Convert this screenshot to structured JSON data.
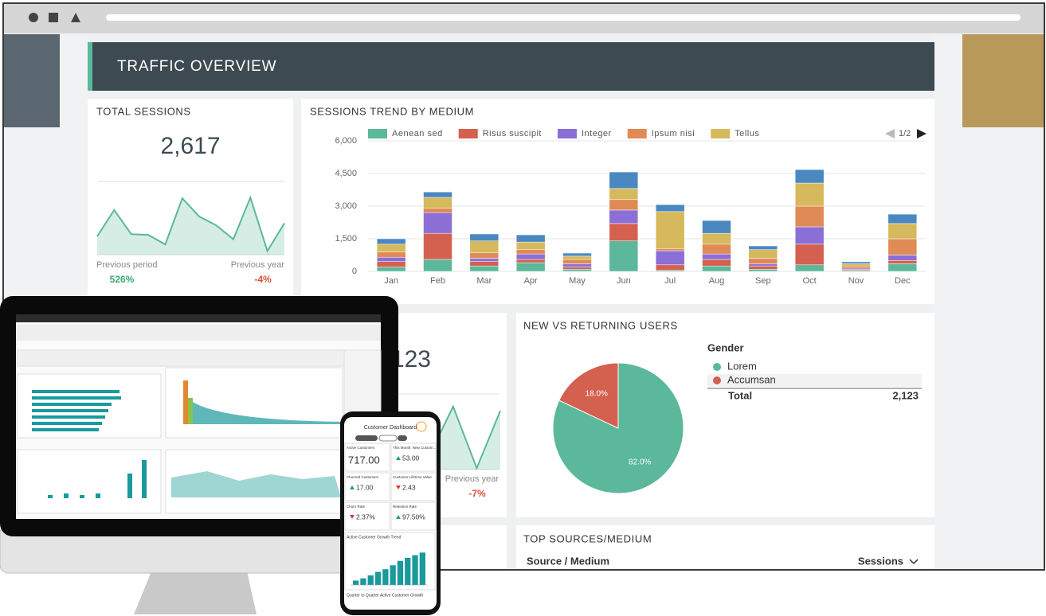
{
  "header": {
    "title": "TRAFFIC OVERVIEW"
  },
  "total_sessions": {
    "title": "TOTAL SESSIONS",
    "value": "2,617",
    "sparkline": {
      "type": "line",
      "values": [
        25,
        61,
        28,
        27,
        14,
        77,
        52,
        40,
        21,
        78,
        5,
        43
      ],
      "ylim": [
        0,
        100
      ],
      "color": "#5bb89a"
    },
    "previous_period_label": "Previous period",
    "previous_period_change": "526%",
    "previous_year_label": "Previous year",
    "previous_year_change": "-4%"
  },
  "sessions_trend": {
    "title": "SESSIONS TREND BY MEDIUM",
    "legend_page": "1/2",
    "chart": {
      "type": "stacked_bar",
      "categories": [
        "Jan",
        "Feb",
        "Mar",
        "Apr",
        "May",
        "Jun",
        "Jul",
        "Aug",
        "Sep",
        "Oct",
        "Nov",
        "Dec"
      ],
      "series": [
        {
          "name": "Aenean sed",
          "color": "#5bb89a",
          "values": [
            200,
            550,
            250,
            400,
            100,
            1400,
            50,
            250,
            100,
            300,
            50,
            350
          ]
        },
        {
          "name": "Risus suscipit",
          "color": "#d4604f",
          "values": [
            250,
            1200,
            200,
            150,
            100,
            800,
            250,
            300,
            150,
            950,
            50,
            150
          ]
        },
        {
          "name": "Integer",
          "color": "#8b6fd6",
          "values": [
            200,
            950,
            150,
            250,
            150,
            620,
            650,
            250,
            100,
            800,
            50,
            250
          ]
        },
        {
          "name": "Ipsum nisi",
          "color": "#e08a55",
          "values": [
            250,
            200,
            250,
            200,
            200,
            480,
            100,
            450,
            250,
            950,
            100,
            750
          ]
        },
        {
          "name": "Tellus",
          "color": "#d6b95c",
          "values": [
            350,
            500,
            550,
            350,
            150,
            510,
            1700,
            500,
            400,
            1060,
            100,
            700
          ]
        },
        {
          "color": "#4a88c0",
          "values": [
            250,
            250,
            320,
            330,
            140,
            760,
            320,
            590,
            170,
            620,
            90,
            430
          ]
        }
      ],
      "ylim": [
        0,
        6000
      ],
      "yticks": [
        0,
        {
          "value": 1500,
          "label": "1,500"
        },
        {
          "value": 3000,
          "label": "3,000"
        },
        {
          "value": 4500,
          "label": "4,500"
        },
        {
          "value": 6000,
          "label": "6,000"
        }
      ],
      "grid": true
    }
  },
  "users_card": {
    "value": "123",
    "sparkline": {
      "type": "line",
      "values": [
        40,
        60,
        20,
        88,
        2,
        82
      ],
      "ylim": [
        0,
        100
      ],
      "color": "#5bb89a"
    },
    "previous_year_label": "Previous year",
    "previous_year_change": "-7%"
  },
  "new_vs_returning": {
    "title": "NEW VS RETURNING USERS",
    "chart": {
      "type": "pie",
      "categories": [
        "Lorem",
        "Accumsan"
      ],
      "values": [
        82,
        18
      ],
      "value_labels": [
        "82.0%",
        "18.0%"
      ],
      "colors": [
        "#5bb89a",
        "#d4604f"
      ]
    },
    "legend_title": "Gender",
    "total_label": "Total",
    "total_value": "2,123"
  },
  "top_sources": {
    "title": "TOP SOURCES/MEDIUM",
    "col1": "Source / Medium",
    "col2": "Sessions"
  },
  "phone": {
    "title": "Customer Dashboard",
    "kpis": [
      {
        "label": "Active Customers",
        "value": "717.00"
      },
      {
        "label": "This Month: New Custom...",
        "value": "53.00"
      },
      {
        "label": "Churned Customers",
        "value": "17.00"
      },
      {
        "label": "Customer Lifetime Value",
        "value": "2.43"
      },
      {
        "label": "Churn Rate",
        "value": "2.37%"
      },
      {
        "label": "Retention Rate",
        "value": "97.50%"
      }
    ],
    "trend_title": "Active Customer Growth Trend",
    "trend": {
      "type": "bar",
      "values": [
        10,
        15,
        22,
        30,
        36,
        45,
        55,
        62,
        68,
        74
      ],
      "ylim": [
        0,
        100
      ],
      "color": "#1a9a9c"
    },
    "footer_title": "Quarter to Quarter Active Customer Growth"
  }
}
